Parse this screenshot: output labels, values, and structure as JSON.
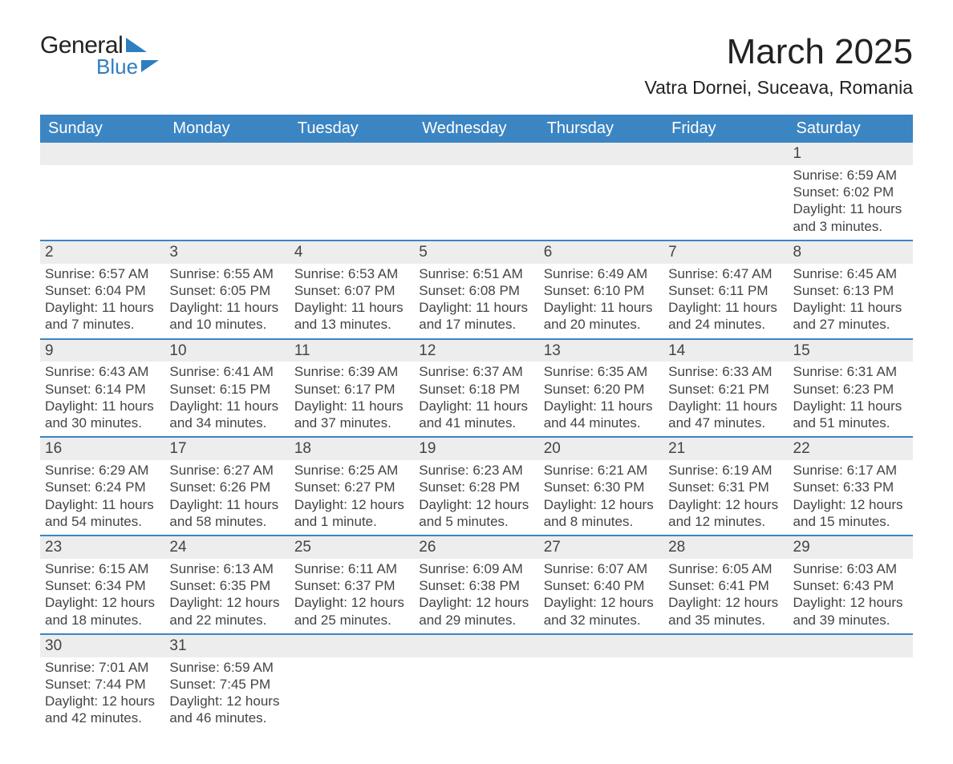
{
  "logo": {
    "line1": "General",
    "line2": "Blue"
  },
  "title": "March 2025",
  "location": "Vatra Dornei, Suceava, Romania",
  "colors": {
    "header_blue": "#3c85c3",
    "row_divider": "#3c85c3",
    "daynum_bg": "#ededed",
    "text": "#444444",
    "background": "#ffffff"
  },
  "layout": {
    "columns": 7,
    "rows": 6,
    "cell_font_size_pt": 13,
    "header_font_size_pt": 15,
    "title_font_size_pt": 33,
    "location_font_size_pt": 17
  },
  "weekdays": [
    "Sunday",
    "Monday",
    "Tuesday",
    "Wednesday",
    "Thursday",
    "Friday",
    "Saturday"
  ],
  "weeks": [
    [
      null,
      null,
      null,
      null,
      null,
      null,
      {
        "day": "1",
        "sunrise": "Sunrise: 6:59 AM",
        "sunset": "Sunset: 6:02 PM",
        "daylight1": "Daylight: 11 hours",
        "daylight2": "and 3 minutes."
      }
    ],
    [
      {
        "day": "2",
        "sunrise": "Sunrise: 6:57 AM",
        "sunset": "Sunset: 6:04 PM",
        "daylight1": "Daylight: 11 hours",
        "daylight2": "and 7 minutes."
      },
      {
        "day": "3",
        "sunrise": "Sunrise: 6:55 AM",
        "sunset": "Sunset: 6:05 PM",
        "daylight1": "Daylight: 11 hours",
        "daylight2": "and 10 minutes."
      },
      {
        "day": "4",
        "sunrise": "Sunrise: 6:53 AM",
        "sunset": "Sunset: 6:07 PM",
        "daylight1": "Daylight: 11 hours",
        "daylight2": "and 13 minutes."
      },
      {
        "day": "5",
        "sunrise": "Sunrise: 6:51 AM",
        "sunset": "Sunset: 6:08 PM",
        "daylight1": "Daylight: 11 hours",
        "daylight2": "and 17 minutes."
      },
      {
        "day": "6",
        "sunrise": "Sunrise: 6:49 AM",
        "sunset": "Sunset: 6:10 PM",
        "daylight1": "Daylight: 11 hours",
        "daylight2": "and 20 minutes."
      },
      {
        "day": "7",
        "sunrise": "Sunrise: 6:47 AM",
        "sunset": "Sunset: 6:11 PM",
        "daylight1": "Daylight: 11 hours",
        "daylight2": "and 24 minutes."
      },
      {
        "day": "8",
        "sunrise": "Sunrise: 6:45 AM",
        "sunset": "Sunset: 6:13 PM",
        "daylight1": "Daylight: 11 hours",
        "daylight2": "and 27 minutes."
      }
    ],
    [
      {
        "day": "9",
        "sunrise": "Sunrise: 6:43 AM",
        "sunset": "Sunset: 6:14 PM",
        "daylight1": "Daylight: 11 hours",
        "daylight2": "and 30 minutes."
      },
      {
        "day": "10",
        "sunrise": "Sunrise: 6:41 AM",
        "sunset": "Sunset: 6:15 PM",
        "daylight1": "Daylight: 11 hours",
        "daylight2": "and 34 minutes."
      },
      {
        "day": "11",
        "sunrise": "Sunrise: 6:39 AM",
        "sunset": "Sunset: 6:17 PM",
        "daylight1": "Daylight: 11 hours",
        "daylight2": "and 37 minutes."
      },
      {
        "day": "12",
        "sunrise": "Sunrise: 6:37 AM",
        "sunset": "Sunset: 6:18 PM",
        "daylight1": "Daylight: 11 hours",
        "daylight2": "and 41 minutes."
      },
      {
        "day": "13",
        "sunrise": "Sunrise: 6:35 AM",
        "sunset": "Sunset: 6:20 PM",
        "daylight1": "Daylight: 11 hours",
        "daylight2": "and 44 minutes."
      },
      {
        "day": "14",
        "sunrise": "Sunrise: 6:33 AM",
        "sunset": "Sunset: 6:21 PM",
        "daylight1": "Daylight: 11 hours",
        "daylight2": "and 47 minutes."
      },
      {
        "day": "15",
        "sunrise": "Sunrise: 6:31 AM",
        "sunset": "Sunset: 6:23 PM",
        "daylight1": "Daylight: 11 hours",
        "daylight2": "and 51 minutes."
      }
    ],
    [
      {
        "day": "16",
        "sunrise": "Sunrise: 6:29 AM",
        "sunset": "Sunset: 6:24 PM",
        "daylight1": "Daylight: 11 hours",
        "daylight2": "and 54 minutes."
      },
      {
        "day": "17",
        "sunrise": "Sunrise: 6:27 AM",
        "sunset": "Sunset: 6:26 PM",
        "daylight1": "Daylight: 11 hours",
        "daylight2": "and 58 minutes."
      },
      {
        "day": "18",
        "sunrise": "Sunrise: 6:25 AM",
        "sunset": "Sunset: 6:27 PM",
        "daylight1": "Daylight: 12 hours",
        "daylight2": "and 1 minute."
      },
      {
        "day": "19",
        "sunrise": "Sunrise: 6:23 AM",
        "sunset": "Sunset: 6:28 PM",
        "daylight1": "Daylight: 12 hours",
        "daylight2": "and 5 minutes."
      },
      {
        "day": "20",
        "sunrise": "Sunrise: 6:21 AM",
        "sunset": "Sunset: 6:30 PM",
        "daylight1": "Daylight: 12 hours",
        "daylight2": "and 8 minutes."
      },
      {
        "day": "21",
        "sunrise": "Sunrise: 6:19 AM",
        "sunset": "Sunset: 6:31 PM",
        "daylight1": "Daylight: 12 hours",
        "daylight2": "and 12 minutes."
      },
      {
        "day": "22",
        "sunrise": "Sunrise: 6:17 AM",
        "sunset": "Sunset: 6:33 PM",
        "daylight1": "Daylight: 12 hours",
        "daylight2": "and 15 minutes."
      }
    ],
    [
      {
        "day": "23",
        "sunrise": "Sunrise: 6:15 AM",
        "sunset": "Sunset: 6:34 PM",
        "daylight1": "Daylight: 12 hours",
        "daylight2": "and 18 minutes."
      },
      {
        "day": "24",
        "sunrise": "Sunrise: 6:13 AM",
        "sunset": "Sunset: 6:35 PM",
        "daylight1": "Daylight: 12 hours",
        "daylight2": "and 22 minutes."
      },
      {
        "day": "25",
        "sunrise": "Sunrise: 6:11 AM",
        "sunset": "Sunset: 6:37 PM",
        "daylight1": "Daylight: 12 hours",
        "daylight2": "and 25 minutes."
      },
      {
        "day": "26",
        "sunrise": "Sunrise: 6:09 AM",
        "sunset": "Sunset: 6:38 PM",
        "daylight1": "Daylight: 12 hours",
        "daylight2": "and 29 minutes."
      },
      {
        "day": "27",
        "sunrise": "Sunrise: 6:07 AM",
        "sunset": "Sunset: 6:40 PM",
        "daylight1": "Daylight: 12 hours",
        "daylight2": "and 32 minutes."
      },
      {
        "day": "28",
        "sunrise": "Sunrise: 6:05 AM",
        "sunset": "Sunset: 6:41 PM",
        "daylight1": "Daylight: 12 hours",
        "daylight2": "and 35 minutes."
      },
      {
        "day": "29",
        "sunrise": "Sunrise: 6:03 AM",
        "sunset": "Sunset: 6:43 PM",
        "daylight1": "Daylight: 12 hours",
        "daylight2": "and 39 minutes."
      }
    ],
    [
      {
        "day": "30",
        "sunrise": "Sunrise: 7:01 AM",
        "sunset": "Sunset: 7:44 PM",
        "daylight1": "Daylight: 12 hours",
        "daylight2": "and 42 minutes."
      },
      {
        "day": "31",
        "sunrise": "Sunrise: 6:59 AM",
        "sunset": "Sunset: 7:45 PM",
        "daylight1": "Daylight: 12 hours",
        "daylight2": "and 46 minutes."
      },
      null,
      null,
      null,
      null,
      null
    ]
  ]
}
